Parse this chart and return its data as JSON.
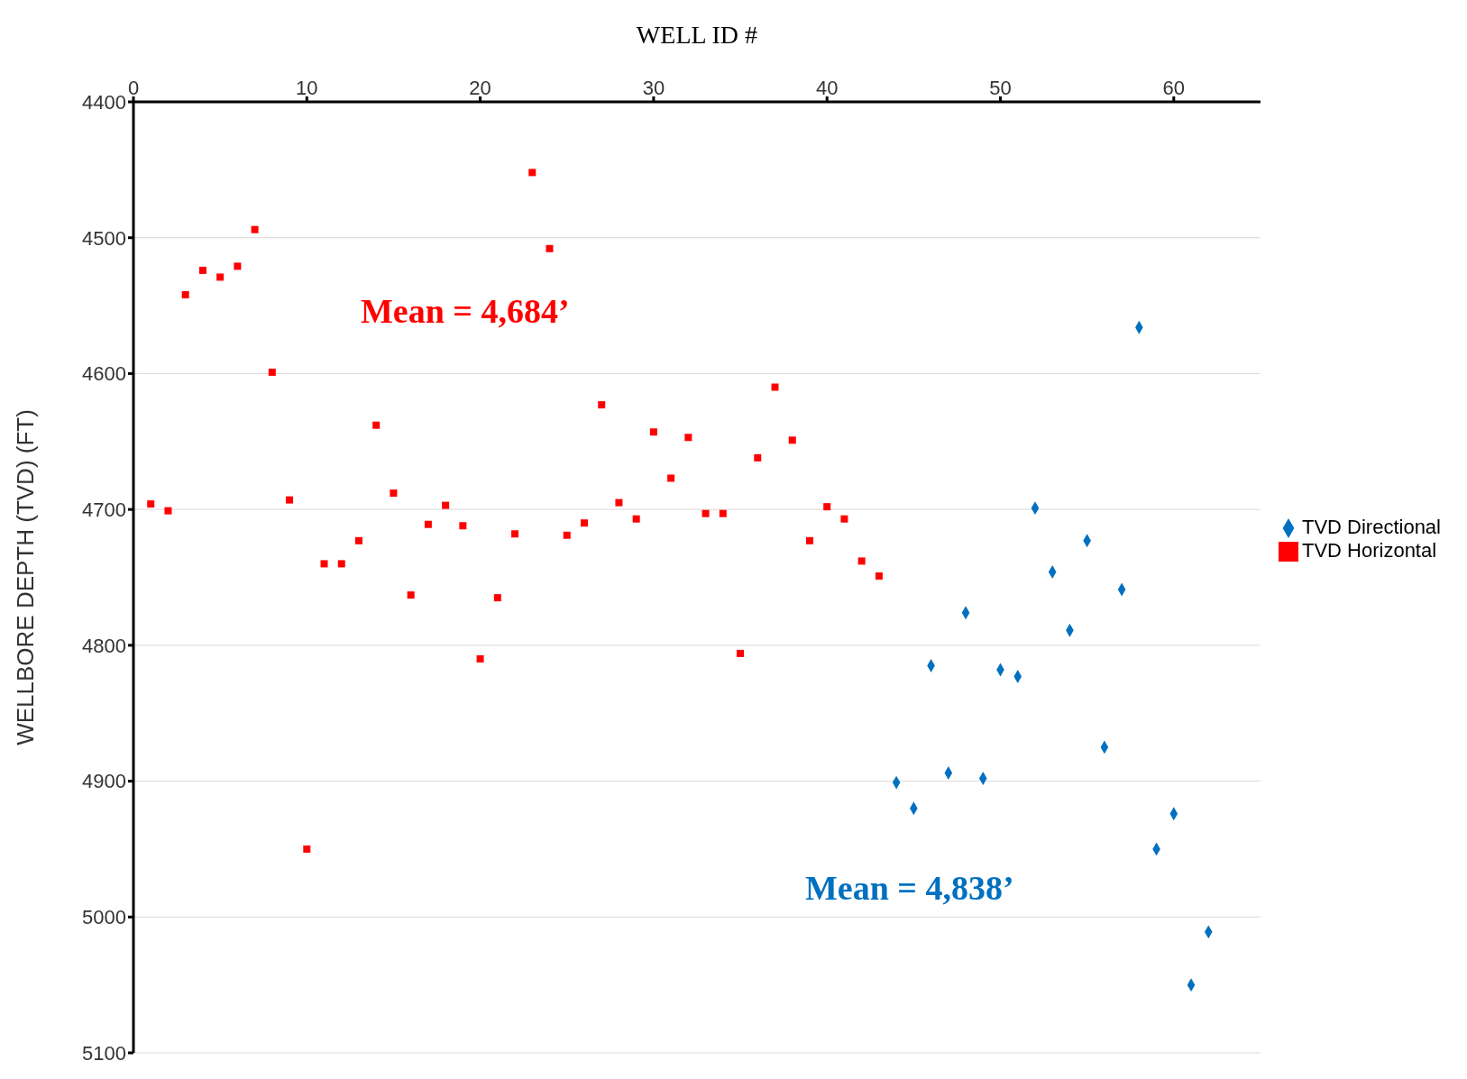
{
  "chart_data": {
    "type": "scatter",
    "xlabel": "WELL ID #",
    "ylabel": "WELLBORE DEPTH (TVD) (FT)",
    "xlim": [
      0,
      65
    ],
    "xticks": [
      0,
      10,
      20,
      30,
      40,
      50,
      60
    ],
    "ylim": [
      5100,
      4400
    ],
    "yticks": [
      4400,
      4500,
      4600,
      4700,
      4800,
      4900,
      5000,
      5100
    ],
    "grid": "y",
    "legend": "right",
    "series": [
      {
        "name": "TVD Directional",
        "color": "#0070c0",
        "marker": "diamond",
        "x": [
          44,
          45,
          46,
          47,
          48,
          49,
          50,
          51,
          52,
          53,
          54,
          55,
          56,
          57,
          58,
          59,
          60,
          61,
          62
        ],
        "values": [
          4901,
          4920,
          4815,
          4894,
          4776,
          4898,
          4818,
          4823,
          4699,
          4746,
          4789,
          4723,
          4875,
          4759,
          4566,
          4950,
          4924,
          5050,
          5011
        ]
      },
      {
        "name": "TVD Horizontal",
        "color": "#ff0000",
        "marker": "square",
        "x": [
          1,
          2,
          3,
          4,
          5,
          6,
          7,
          8,
          9,
          10,
          11,
          12,
          13,
          14,
          15,
          16,
          17,
          18,
          19,
          20,
          21,
          22,
          23,
          24,
          25,
          26,
          27,
          28,
          29,
          30,
          31,
          32,
          33,
          34,
          35,
          36,
          37,
          38,
          39,
          40,
          41,
          42,
          43
        ],
        "values": [
          4696,
          4701,
          4542,
          4524,
          4529,
          4521,
          4494,
          4599,
          4693,
          4950,
          4740,
          4740,
          4723,
          4638,
          4688,
          4763,
          4711,
          4697,
          4712,
          4810,
          4765,
          4718,
          4452,
          4508,
          4719,
          4710,
          4623,
          4695,
          4707,
          4643,
          4677,
          4647,
          4703,
          4703,
          4806,
          4662,
          4610,
          4649,
          4723,
          4698,
          4707,
          4738,
          4749
        ]
      }
    ],
    "annotations": [
      "Mean = 4,838’",
      "Mean = 4,684’"
    ]
  }
}
